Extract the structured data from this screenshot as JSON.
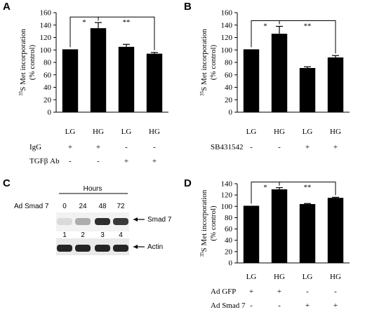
{
  "chart_data": [
    {
      "type": "bar",
      "panel": "A",
      "ylabel": "35S Met incorporation (% control)",
      "ylabel_sup": "35",
      "ylabel_main": "S Met incorporation",
      "ylabel_sub": "(% control)",
      "ylim": [
        0,
        160
      ],
      "yticks": [
        0,
        20,
        40,
        60,
        80,
        100,
        120,
        140,
        160
      ],
      "categories": [
        "LG",
        "HG",
        "LG",
        "HG"
      ],
      "values": [
        101,
        135,
        105,
        94
      ],
      "errors": [
        0,
        9,
        4,
        2
      ],
      "significance": [
        {
          "from": 0,
          "to": 1,
          "label": "*"
        },
        {
          "from": 1,
          "to": 3,
          "label": "**"
        }
      ],
      "treatments": [
        {
          "name": "IgG",
          "signs": [
            "+",
            "+",
            "-",
            "-"
          ]
        },
        {
          "name": "TGFβ Ab",
          "signs": [
            "-",
            "-",
            "+",
            "+"
          ]
        }
      ]
    },
    {
      "type": "bar",
      "panel": "B",
      "ylabel": "35S Met incorporation (% control)",
      "ylabel_sup": "35",
      "ylabel_main": "S Met incorporation",
      "ylabel_sub": "(% control)",
      "ylim": [
        0,
        160
      ],
      "yticks": [
        0,
        20,
        40,
        60,
        80,
        100,
        120,
        140,
        160
      ],
      "categories": [
        "LG",
        "HG",
        "LG",
        "HG"
      ],
      "values": [
        101,
        126,
        71,
        88
      ],
      "errors": [
        0,
        12,
        2,
        3
      ],
      "significance": [
        {
          "from": 0,
          "to": 1,
          "label": "*"
        },
        {
          "from": 1,
          "to": 3,
          "label": "**"
        }
      ],
      "treatments": [
        {
          "name": "SB431542",
          "signs": [
            "-",
            "-",
            "+",
            "+"
          ]
        }
      ]
    },
    {
      "type": "bar",
      "panel": "D",
      "ylabel": "35S Met incorporation (% control)",
      "ylabel_sup": "35",
      "ylabel_main": "S Met incorporation",
      "ylabel_sub": "(% control)",
      "ylim": [
        0,
        140
      ],
      "yticks": [
        0,
        20,
        40,
        60,
        80,
        100,
        120,
        140
      ],
      "categories": [
        "LG",
        "HG",
        "LG",
        "HG"
      ],
      "values": [
        101,
        130,
        104,
        115
      ],
      "errors": [
        0,
        3,
        1,
        1
      ],
      "significance": [
        {
          "from": 0,
          "to": 1,
          "label": "*"
        },
        {
          "from": 1,
          "to": 3,
          "label": "**"
        }
      ],
      "treatments": [
        {
          "name": "Ad GFP",
          "signs": [
            "+",
            "+",
            "-",
            "-"
          ]
        },
        {
          "name": "Ad Smad 7",
          "signs": [
            "-",
            "-",
            "+",
            "+"
          ]
        }
      ]
    }
  ],
  "blot": {
    "panel": "C",
    "row_label": "Ad Smad 7",
    "header": "Hours",
    "timepoints": [
      "0",
      "24",
      "48",
      "72"
    ],
    "lanes": [
      "1",
      "2",
      "3",
      "4"
    ],
    "bands": [
      {
        "name": "Smad 7",
        "intensities": [
          0.08,
          0.3,
          0.9,
          0.85
        ]
      },
      {
        "name": "Actin",
        "intensities": [
          0.95,
          0.95,
          0.95,
          0.95
        ]
      }
    ]
  }
}
